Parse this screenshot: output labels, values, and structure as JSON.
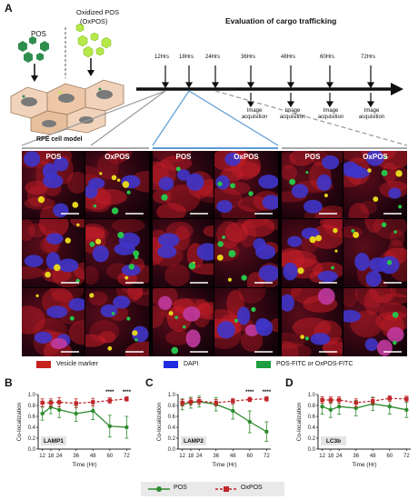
{
  "panelA": {
    "label": "A",
    "pos_label": "POS",
    "oxpos_label": "Oxidized POS",
    "oxpos_abbr": "(OxPOS)",
    "cell_model_label": "RPE cell model",
    "timeline_title": "Evaluation of cargo trafficking",
    "time_points": [
      "12Hrs",
      "18Hrs",
      "24Hrs",
      "36Hrs",
      "48Hrs",
      "60Hrs",
      "72Hrs"
    ],
    "acquisition_label_1": "Image",
    "acquisition_label_2": "acquisition"
  },
  "microscopy": {
    "column_headers": [
      "POS",
      "OxPOS",
      "POS",
      "OxPOS",
      "POS",
      "OxPOS"
    ],
    "row_labels": [
      "LAMP1",
      "LAMP2",
      "LC3b"
    ],
    "legend": [
      {
        "label": "Vesicle marker",
        "color": "#c8221e"
      },
      {
        "label": "DAPI",
        "color": "#1f2be0"
      },
      {
        "label": "POS-FITC or OxPOS-FITC",
        "color": "#1e9e3e"
      }
    ]
  },
  "panel_letters": {
    "B": "B",
    "C": "C",
    "D": "D"
  },
  "axis_labels": {
    "y": "Co-localization",
    "x": "Time (Hr)"
  },
  "bottom_legend": [
    {
      "label": "POS",
      "color": "#2e8b2e"
    },
    {
      "label": "OxPOS",
      "color": "#c0262a"
    }
  ],
  "significance": "****",
  "colors": {
    "pos": "#2e8b2e",
    "oxpos": "#c0262a",
    "arrow": "#111111"
  },
  "chart_data": [
    {
      "type": "line",
      "inset_label": "LAMP1",
      "x": [
        12,
        18,
        24,
        36,
        48,
        60,
        72
      ],
      "ylim": [
        0.0,
        1.0
      ],
      "yticks": [
        "0.0",
        "0.2",
        "0.4",
        "0.6",
        "0.8",
        "1.0"
      ],
      "series": [
        {
          "name": "POS",
          "values": [
            0.65,
            0.77,
            0.72,
            0.65,
            0.7,
            0.42,
            0.4
          ],
          "err": [
            0.12,
            0.12,
            0.14,
            0.14,
            0.16,
            0.2,
            0.2
          ]
        },
        {
          "name": "OxPOS",
          "values": [
            0.85,
            0.85,
            0.86,
            0.84,
            0.86,
            0.89,
            0.92
          ],
          "err": [
            0.07,
            0.07,
            0.08,
            0.08,
            0.07,
            0.05,
            0.04
          ]
        }
      ],
      "significance_at": [
        60,
        72
      ]
    },
    {
      "type": "line",
      "inset_label": "LAMP2",
      "x": [
        12,
        18,
        24,
        36,
        48,
        60,
        72
      ],
      "ylim": [
        0.0,
        1.0
      ],
      "yticks": [
        "0.0",
        "0.2",
        "0.4",
        "0.6",
        "0.8",
        "1.0"
      ],
      "series": [
        {
          "name": "POS",
          "values": [
            0.82,
            0.85,
            0.87,
            0.82,
            0.7,
            0.5,
            0.32
          ],
          "err": [
            0.1,
            0.1,
            0.1,
            0.12,
            0.15,
            0.2,
            0.18
          ]
        },
        {
          "name": "OxPOS",
          "values": [
            0.85,
            0.87,
            0.88,
            0.85,
            0.88,
            0.91,
            0.92
          ],
          "err": [
            0.06,
            0.06,
            0.06,
            0.06,
            0.05,
            0.04,
            0.04
          ]
        }
      ],
      "significance_at": [
        60,
        72
      ]
    },
    {
      "type": "line",
      "inset_label": "LC3b",
      "x": [
        12,
        18,
        24,
        36,
        48,
        60,
        72
      ],
      "ylim": [
        0.0,
        1.0
      ],
      "yticks": [
        "0.0",
        "0.2",
        "0.4",
        "0.6",
        "0.8",
        "1.0"
      ],
      "series": [
        {
          "name": "POS",
          "values": [
            0.78,
            0.72,
            0.78,
            0.75,
            0.83,
            0.78,
            0.72
          ],
          "err": [
            0.14,
            0.14,
            0.14,
            0.14,
            0.12,
            0.14,
            0.14
          ]
        },
        {
          "name": "OxPOS",
          "values": [
            0.9,
            0.9,
            0.9,
            0.85,
            0.88,
            0.93,
            0.92
          ],
          "err": [
            0.06,
            0.06,
            0.06,
            0.07,
            0.06,
            0.05,
            0.05
          ]
        }
      ],
      "significance_at": []
    }
  ]
}
